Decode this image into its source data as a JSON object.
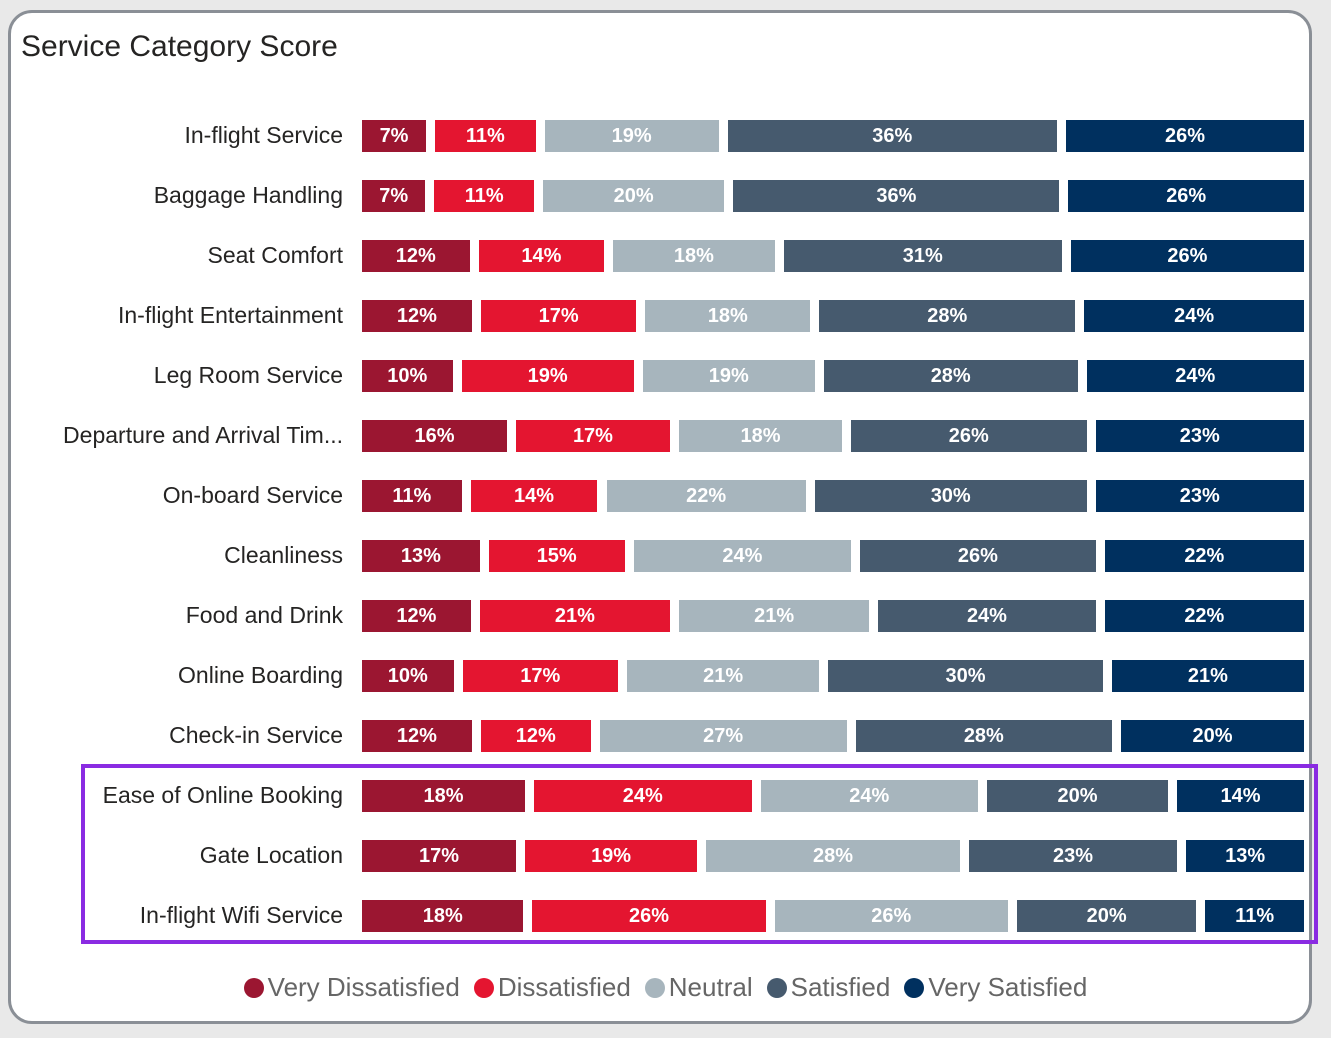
{
  "chart_data": {
    "type": "bar",
    "orientation": "horizontal",
    "stacked": "100%",
    "title": "Service Category Score",
    "categories": [
      "In-flight Service",
      "Baggage Handling",
      "Seat Comfort",
      "In-flight Entertainment",
      "Leg Room Service",
      "Departure and Arrival Tim...",
      "On-board Service",
      "Cleanliness",
      "Food and Drink",
      "Online Boarding",
      "Check-in Service",
      "Ease of Online Booking",
      "Gate Location",
      "In-flight Wifi Service"
    ],
    "series": [
      {
        "name": "Very Dissatisfied",
        "color": "#9b1631",
        "values": [
          7,
          7,
          12,
          12,
          10,
          16,
          11,
          13,
          12,
          10,
          12,
          18,
          17,
          18
        ]
      },
      {
        "name": "Dissatisfied",
        "color": "#e41530",
        "values": [
          11,
          11,
          14,
          17,
          19,
          17,
          14,
          15,
          21,
          17,
          12,
          24,
          19,
          26
        ]
      },
      {
        "name": "Neutral",
        "color": "#a7b5bd",
        "values": [
          19,
          20,
          18,
          18,
          19,
          18,
          22,
          24,
          21,
          21,
          27,
          24,
          28,
          26
        ]
      },
      {
        "name": "Satisfied",
        "color": "#465a6e",
        "values": [
          36,
          36,
          31,
          28,
          28,
          26,
          30,
          26,
          24,
          30,
          28,
          20,
          23,
          20
        ]
      },
      {
        "name": "Very Satisfied",
        "color": "#00305f",
        "values": [
          26,
          26,
          26,
          24,
          24,
          23,
          23,
          22,
          22,
          21,
          20,
          14,
          13,
          11
        ]
      }
    ],
    "value_format": "{v}%",
    "legend_position": "bottom",
    "highlighted_categories": [
      "Ease of Online Booking",
      "Gate Location",
      "In-flight Wifi Service"
    ],
    "highlight_color": "#8a2be2",
    "grid": false
  }
}
